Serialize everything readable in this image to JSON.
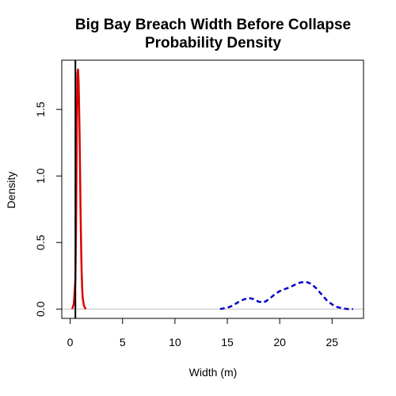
{
  "chart_data": {
    "type": "line",
    "title_lines": [
      "Big Bay Breach Width Before Collapse",
      "Probability Density"
    ],
    "xlabel": "Width (m)",
    "ylabel": "Density",
    "xlim": [
      -0.8,
      28
    ],
    "ylim": [
      -0.07,
      1.87
    ],
    "x_ticks": [
      0,
      5,
      10,
      15,
      20,
      25
    ],
    "x_tick_labels": [
      "0",
      "5",
      "10",
      "15",
      "20",
      "25"
    ],
    "y_ticks": [
      0.0,
      0.5,
      1.0,
      1.5
    ],
    "y_tick_labels": [
      "0.0",
      "0.5",
      "1.0",
      "1.5"
    ],
    "baseline": 0,
    "vline": {
      "x": 0.5,
      "color": "#000000"
    },
    "series": [
      {
        "style": "solid",
        "color": "#dd0000",
        "x": [
          0.2,
          0.35,
          0.5,
          0.55,
          0.6,
          0.65,
          0.7,
          0.75,
          0.8,
          0.85,
          0.9,
          0.95,
          1.0,
          1.05,
          1.1,
          1.15,
          1.2,
          1.3,
          1.4,
          1.5
        ],
        "y": [
          0.0,
          0.04,
          0.22,
          0.55,
          0.98,
          1.5,
          1.77,
          1.8,
          1.72,
          1.55,
          1.3,
          0.98,
          0.7,
          0.45,
          0.28,
          0.15,
          0.08,
          0.03,
          0.01,
          0.0
        ]
      },
      {
        "style": "dashed",
        "color": "#0000cc",
        "x": [
          14.3,
          15.0,
          15.5,
          16.0,
          16.5,
          17.0,
          17.5,
          18.0,
          18.5,
          19.0,
          19.5,
          20.0,
          20.5,
          21.0,
          21.5,
          22.0,
          22.5,
          23.0,
          23.5,
          24.0,
          24.5,
          25.0,
          25.5,
          26.0,
          26.5,
          27.0
        ],
        "y": [
          0.0,
          0.01,
          0.025,
          0.05,
          0.07,
          0.085,
          0.075,
          0.055,
          0.05,
          0.075,
          0.11,
          0.135,
          0.15,
          0.165,
          0.185,
          0.2,
          0.205,
          0.19,
          0.155,
          0.11,
          0.065,
          0.035,
          0.015,
          0.005,
          0.0,
          0.0
        ]
      }
    ]
  }
}
